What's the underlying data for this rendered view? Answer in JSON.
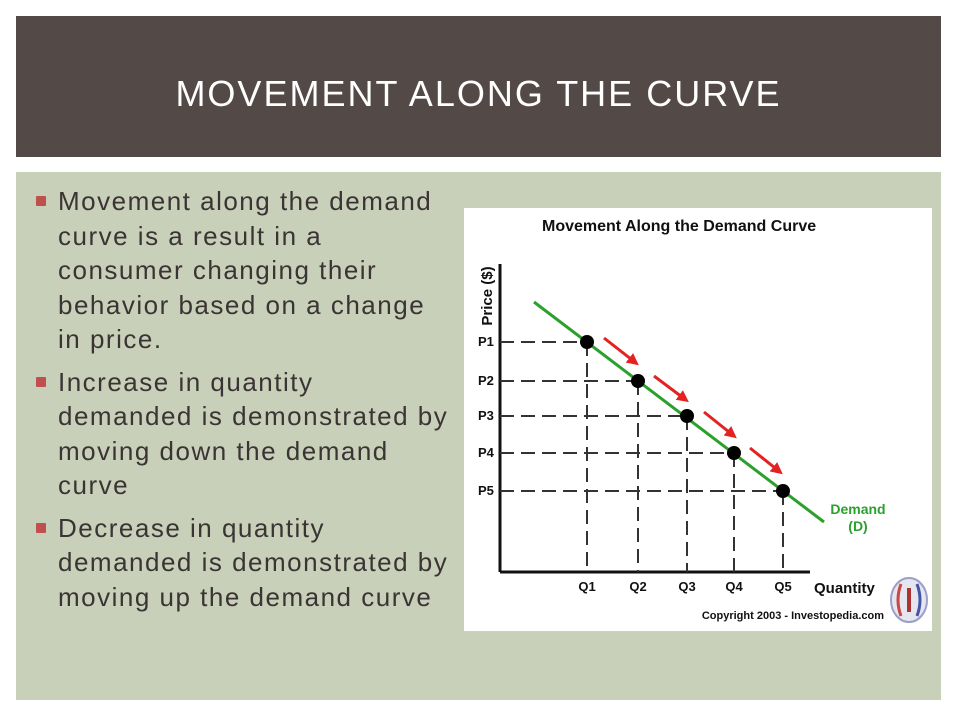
{
  "slide": {
    "title": "MOVEMENT ALONG THE CURVE",
    "bullets": [
      "Movement along the demand curve is a result in a consumer changing their behavior based on a change in price.",
      "Increase in quantity demanded is demonstrated by moving down the demand curve",
      "Decrease in quantity demanded is demonstrated by moving up the demand curve"
    ]
  },
  "colors": {
    "title_bar": "#534946",
    "content_bg": "#c9d0b9",
    "bullet_marker": "#c0504d",
    "demand_line": "#2ca02c",
    "arrow": "#e32222",
    "point": "#000000"
  },
  "figure": {
    "title": "Movement Along the Demand Curve",
    "y_axis_label": "Price ($)",
    "x_axis_label": "Quantity",
    "curve_label_line1": "Demand",
    "curve_label_line2": "(D)",
    "price_labels": [
      "P1",
      "P2",
      "P3",
      "P4",
      "P5"
    ],
    "quantity_labels": [
      "Q1",
      "Q2",
      "Q3",
      "Q4",
      "Q5"
    ],
    "copyright": "Copyright 2003 - Investopedia.com",
    "logo": "investopedia-logo"
  }
}
